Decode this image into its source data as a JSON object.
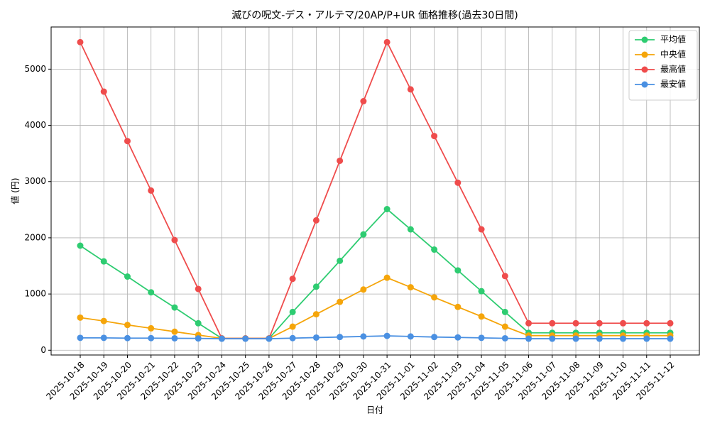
{
  "chart_data": {
    "type": "line",
    "title": "滅びの呪文-デス・アルテマ/20AP/P+UR 価格推移(過去30日間)",
    "x_label": "日付",
    "y_label": "値 (円)",
    "categories": [
      "2025-10-18",
      "2025-10-19",
      "2025-10-20",
      "2025-10-21",
      "2025-10-22",
      "2025-10-23",
      "2025-10-24",
      "2025-10-25",
      "2025-10-26",
      "2025-10-27",
      "2025-10-28",
      "2025-10-29",
      "2025-10-30",
      "2025-10-31",
      "2025-11-01",
      "2025-11-02",
      "2025-11-03",
      "2025-11-04",
      "2025-11-05",
      "2025-11-06",
      "2025-11-07",
      "2025-11-08",
      "2025-11-09",
      "2025-11-10",
      "2025-11-11",
      "2025-11-12"
    ],
    "series": [
      {
        "name": "平均値",
        "color": "#2ecc71",
        "values": [
          1860,
          1580,
          1310,
          1030,
          760,
          480,
          210,
          210,
          210,
          680,
          1130,
          1590,
          2060,
          2510,
          2150,
          1790,
          1420,
          1050,
          680,
          310,
          310,
          310,
          310,
          310,
          310,
          310
        ]
      },
      {
        "name": "中央値",
        "color": "#f5a50a",
        "values": [
          580,
          520,
          450,
          390,
          330,
          270,
          210,
          210,
          210,
          420,
          640,
          860,
          1080,
          1290,
          1120,
          940,
          770,
          600,
          420,
          260,
          260,
          260,
          260,
          260,
          260,
          260
        ]
      },
      {
        "name": "最高値",
        "color": "#ef4c4c",
        "values": [
          5480,
          4600,
          3720,
          2840,
          1960,
          1090,
          210,
          210,
          210,
          1270,
          2310,
          3370,
          4430,
          5480,
          4640,
          3810,
          2980,
          2150,
          1320,
          480,
          480,
          480,
          480,
          480,
          480,
          480
        ]
      },
      {
        "name": "最安値",
        "color": "#4a90e2",
        "values": [
          220,
          220,
          215,
          215,
          212,
          210,
          205,
          205,
          205,
          215,
          225,
          235,
          245,
          255,
          245,
          235,
          228,
          220,
          212,
          205,
          205,
          205,
          205,
          205,
          205,
          205
        ]
      }
    ],
    "ylim": [
      -85,
      5750
    ],
    "yticks": [
      0,
      1000,
      2000,
      3000,
      4000,
      5000
    ],
    "grid": true,
    "legend": "upper right"
  }
}
